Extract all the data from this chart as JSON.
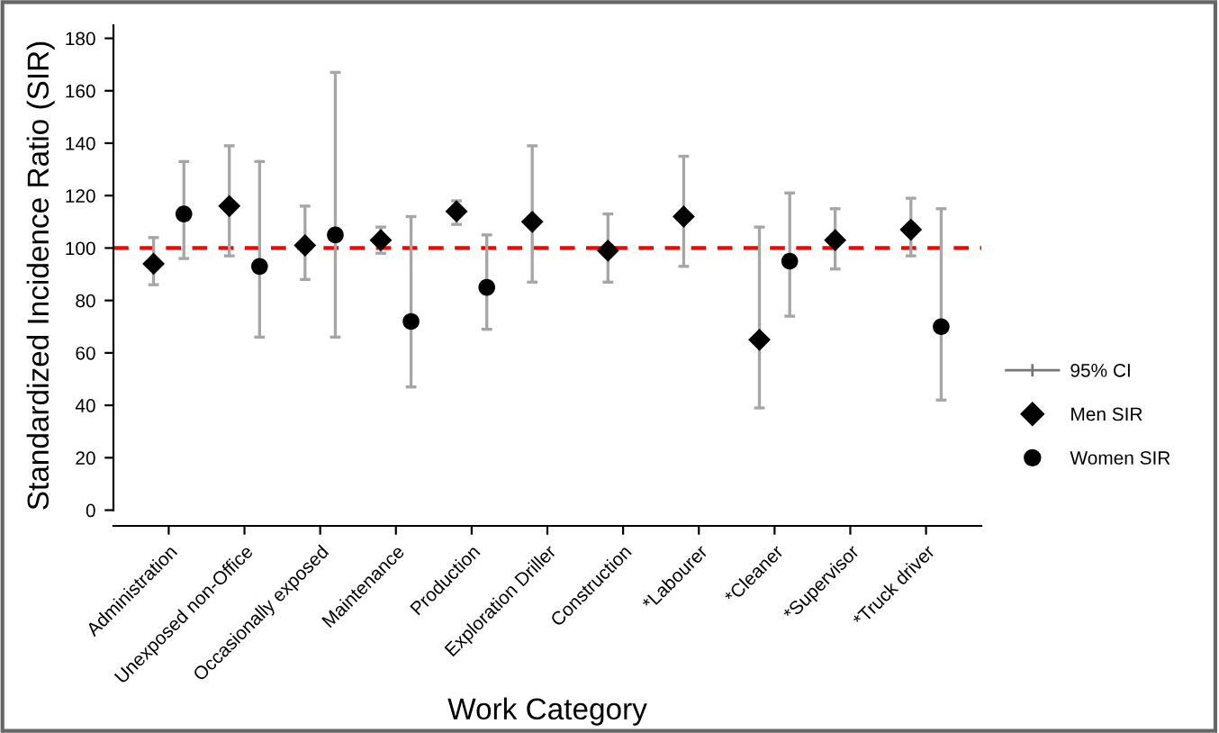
{
  "chart_data": {
    "type": "scatter",
    "xlabel": "Work Category",
    "ylabel": "Standardized Incidence Ratio (SIR)",
    "categories": [
      "Administration",
      "Unexposed non-Office",
      "Occasionally exposed",
      "Maintenance",
      "Production",
      "Exploration Driller",
      "Construction",
      "*Labourer",
      "*Cleaner",
      "*Supervisor",
      "*Truck driver"
    ],
    "series": [
      {
        "name": "Men SIR",
        "color": "#000000",
        "marker": "diamond",
        "values": [
          94,
          116,
          101,
          103,
          114,
          110,
          99,
          112,
          65,
          103,
          107
        ],
        "errors": [
          [
            86,
            104
          ],
          [
            97,
            139
          ],
          [
            88,
            116
          ],
          [
            98,
            108
          ],
          [
            109,
            118
          ],
          [
            87,
            139
          ],
          [
            87,
            113
          ],
          [
            93,
            135
          ],
          [
            39,
            108
          ],
          [
            92,
            115
          ],
          [
            97,
            119
          ]
        ]
      },
      {
        "name": "Women SIR",
        "color": "#000000",
        "marker": "circle",
        "values": [
          113,
          93,
          105,
          72,
          85,
          null,
          null,
          null,
          95,
          null,
          70
        ],
        "errors": [
          [
            96,
            133
          ],
          [
            66,
            133
          ],
          [
            66,
            167
          ],
          [
            47,
            112
          ],
          [
            69,
            105
          ],
          null,
          null,
          null,
          [
            74,
            121
          ],
          null,
          [
            42,
            115
          ]
        ]
      }
    ],
    "annotations": [
      "95% CI"
    ],
    "ylim": [
      -6,
      185
    ],
    "yticks": [
      0,
      20,
      40,
      60,
      80,
      100,
      120,
      140,
      160,
      180
    ],
    "ref_lines": [
      {
        "axis": "y",
        "value": 100,
        "color": "#ff0000",
        "line_style": "dashed"
      }
    ],
    "grid": false,
    "legend": "right"
  }
}
